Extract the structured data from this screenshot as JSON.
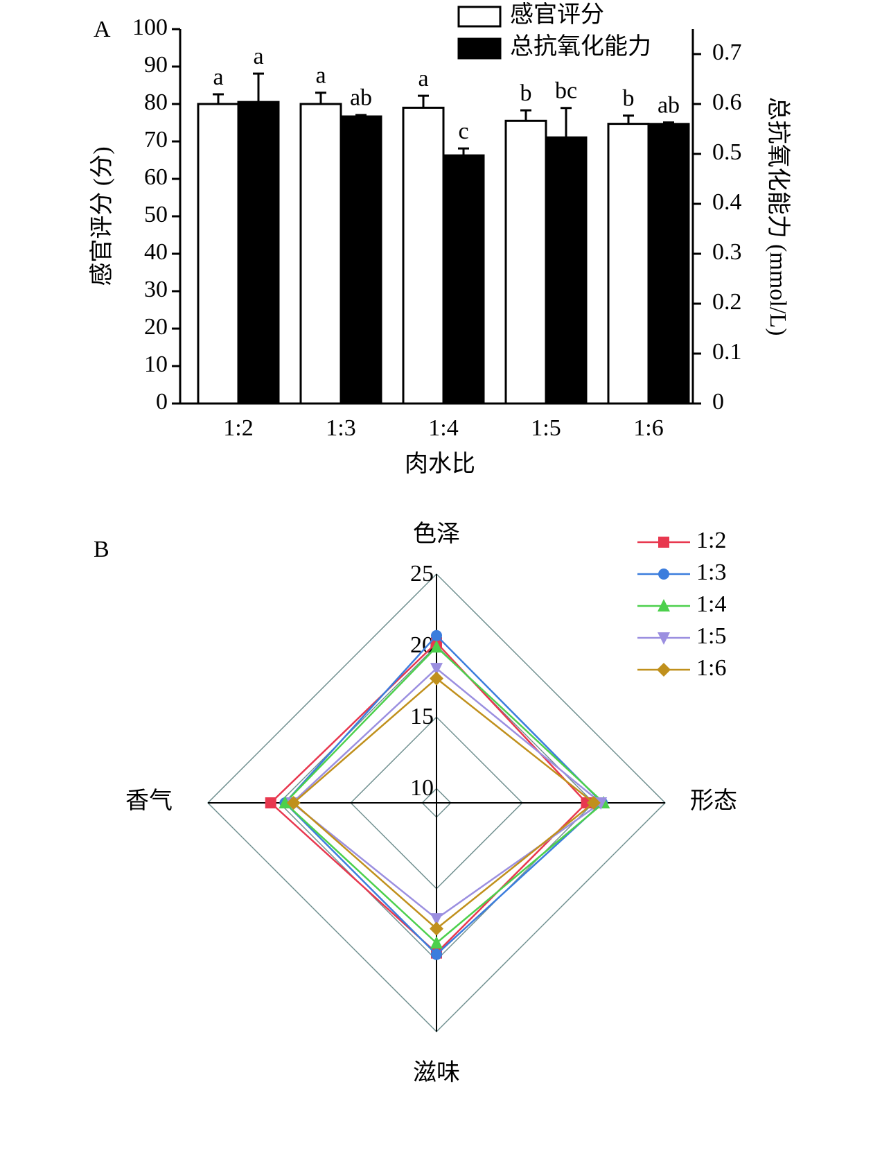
{
  "chart_data": [
    {
      "type": "bar",
      "panel_label": "A",
      "xlabel": "肉水比",
      "ylabel": "感官评分 (分)",
      "y2label": "总抗氧化能力 (mmol/L)",
      "categories": [
        "1:2",
        "1:3",
        "1:4",
        "1:5",
        "1:6"
      ],
      "series": [
        {
          "name": "感官评分",
          "color": "#ffffff",
          "values": [
            80,
            80,
            79,
            75.5,
            74.7
          ],
          "errors": [
            2.6,
            3,
            3.2,
            2.8,
            2.2
          ],
          "letters": [
            "a",
            "a",
            "a",
            "b",
            "b"
          ]
        },
        {
          "name": "总抗氧化能力",
          "color": "#000000",
          "axis": "y2",
          "values": [
            0.604,
            0.575,
            0.497,
            0.533,
            0.56
          ],
          "errors": [
            0.057,
            0.003,
            0.014,
            0.059,
            0.003
          ],
          "letters": [
            "a",
            "ab",
            "c",
            "bc",
            "ab"
          ]
        }
      ],
      "ylim": [
        0,
        100
      ],
      "yticks": [
        0,
        10,
        20,
        30,
        40,
        50,
        60,
        70,
        80,
        90,
        100
      ],
      "y2lim": [
        0,
        0.75
      ],
      "y2ticks": [
        0,
        0.1,
        0.2,
        0.3,
        0.4,
        0.5,
        0.6,
        0.7
      ]
    },
    {
      "type": "radar",
      "panel_label": "B",
      "axes": [
        "色泽",
        "形态",
        "滋味",
        "香气"
      ],
      "rlim": [
        9,
        25
      ],
      "rticks": [
        10,
        15,
        20,
        25
      ],
      "series": [
        {
          "name": "1:2",
          "color": "#e8384f",
          "marker": "square",
          "values": [
            20.2,
            19.5,
            19.5,
            20.6
          ]
        },
        {
          "name": "1:3",
          "color": "#3b7ddd",
          "marker": "circle",
          "values": [
            20.7,
            20.6,
            19.6,
            19.6
          ]
        },
        {
          "name": "1:4",
          "color": "#4cd04c",
          "marker": "triangle",
          "values": [
            19.9,
            20.7,
            18.8,
            19.6
          ]
        },
        {
          "name": "1:5",
          "color": "#9b8fe0",
          "marker": "triangle-down",
          "values": [
            18.4,
            20.5,
            17.1,
            19.1
          ]
        },
        {
          "name": "1:6",
          "color": "#c0901c",
          "marker": "diamond",
          "values": [
            17.7,
            20.0,
            17.8,
            19.0
          ]
        }
      ]
    }
  ]
}
